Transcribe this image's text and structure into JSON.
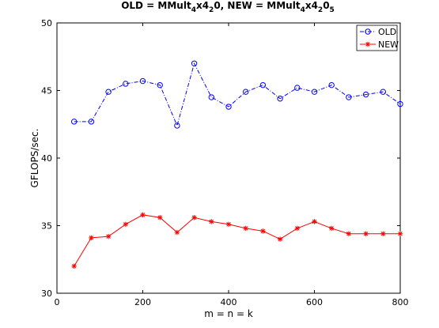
{
  "chart_data": {
    "type": "line",
    "title": {
      "prefix_old": "OLD = MMult",
      "sub_1": "4",
      "mid_1": "x4",
      "sub_2": "2",
      "mid_2": "0, NEW = MMult",
      "sub_3": "4",
      "mid_3": "x4",
      "sub_4": "2",
      "mid_4": "0",
      "sub_5": "5"
    },
    "xlabel": "m = n = k",
    "ylabel": "GFLOPS/sec.",
    "xlim": [
      0,
      800
    ],
    "ylim": [
      30,
      50
    ],
    "xticks": [
      0,
      200,
      400,
      600,
      800
    ],
    "yticks": [
      30,
      35,
      40,
      45,
      50
    ],
    "grid": false,
    "legend_placement": "top-right",
    "x": [
      40,
      80,
      120,
      160,
      200,
      240,
      280,
      320,
      360,
      400,
      440,
      480,
      520,
      560,
      600,
      640,
      680,
      720,
      760,
      800
    ],
    "series": [
      {
        "name": "OLD",
        "color": "#0000ff",
        "line_style": "dash-dot",
        "marker": "circle",
        "values": [
          42.7,
          42.7,
          44.9,
          45.5,
          45.7,
          45.4,
          42.4,
          47.0,
          44.5,
          43.8,
          44.9,
          45.4,
          44.4,
          45.2,
          44.9,
          45.4,
          44.5,
          44.7,
          44.9,
          44.0
        ]
      },
      {
        "name": "NEW",
        "color": "#ff0000",
        "line_style": "solid",
        "marker": "star",
        "values": [
          32.0,
          34.1,
          34.2,
          35.1,
          35.8,
          35.6,
          34.5,
          35.6,
          35.3,
          35.1,
          34.8,
          34.6,
          34.0,
          34.8,
          35.3,
          34.8,
          34.4,
          34.4,
          34.4,
          34.4
        ]
      }
    ]
  }
}
